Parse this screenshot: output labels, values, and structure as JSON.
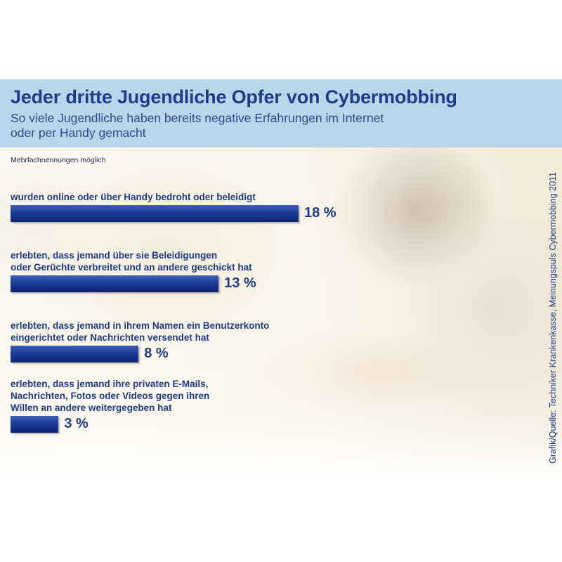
{
  "chart_data": {
    "type": "bar",
    "orientation": "horizontal",
    "title": "Jeder dritte Jugendliche Opfer von Cybermobbing",
    "subtitle": "So viele Jugendliche haben bereits negative Erfahrungen im Internet\noder per Handy gemacht",
    "note": "Mehrfachnennungen möglich",
    "source": "Grafik/Quelle: Techniker Krankenkasse, Meinungspuls Cybermobbing 2011",
    "categories": [
      "wurden online oder über Handy bedroht oder beleidigt",
      "erlebten, dass jemand über sie Beleidigungen\noder Gerüchte verbreitet und an andere geschickt hat",
      "erlebten, dass jemand in ihrem Namen ein Benutzerkonto\neingerichtet oder Nachrichten versendet hat",
      "erlebten, dass jemand ihre privaten E-Mails,\nNachrichten, Fotos oder Videos gegen ihren\nWillen an andere weitergegeben hat"
    ],
    "values": [
      18,
      13,
      8,
      3
    ],
    "value_labels": [
      "18 %",
      "13 %",
      "8 %",
      "3 %"
    ],
    "unit": "%",
    "bar_color": "#1d3c98",
    "text_color": "#1d3c8c",
    "header_color": "#b8d6ea"
  }
}
